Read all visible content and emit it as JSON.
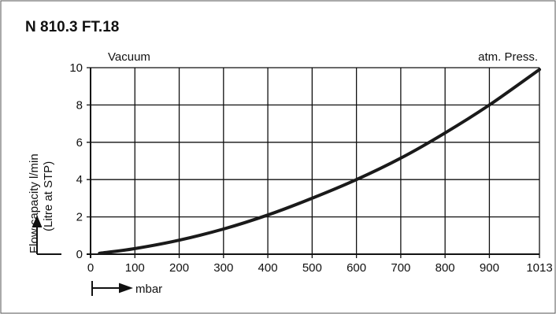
{
  "chart_data": {
    "type": "line",
    "title": "N 810.3 FT.18",
    "ylabel_line1": "Flow capacity l/min",
    "ylabel_line2": "(Litre at STP)",
    "xlabel": "mbar",
    "left_annotation": "Vacuum",
    "right_annotation": "atm. Press.",
    "x_ticks": [
      0,
      100,
      200,
      300,
      400,
      500,
      600,
      700,
      800,
      900,
      1013
    ],
    "y_ticks": [
      0,
      2,
      4,
      6,
      8,
      10
    ],
    "xlim": [
      0,
      1013
    ],
    "ylim": [
      0,
      10
    ],
    "grid": true,
    "legend": "none",
    "line_color": "#1a1a1a",
    "series": [
      {
        "x": [
          20,
          100,
          200,
          300,
          400,
          500,
          600,
          700,
          800,
          900,
          1013
        ],
        "y": [
          0.05,
          0.3,
          0.75,
          1.35,
          2.1,
          3.0,
          4.0,
          5.15,
          6.5,
          8.0,
          9.9
        ]
      }
    ]
  }
}
